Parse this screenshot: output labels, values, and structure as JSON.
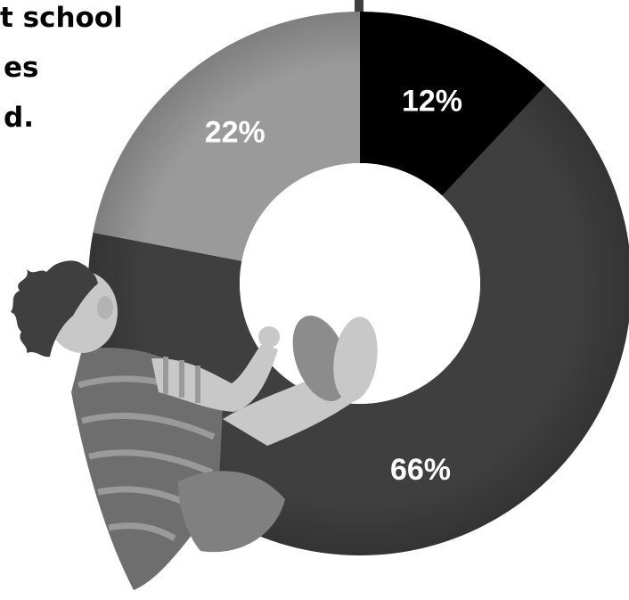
{
  "caption_lines": [
    "t school",
    "es",
    "d."
  ],
  "chart_data": {
    "type": "pie",
    "variant": "donut",
    "title": "",
    "slices": [
      {
        "label": "12%",
        "value": 12,
        "color": "#000000"
      },
      {
        "label": "66%",
        "value": 66,
        "color": "#3f3f3f"
      },
      {
        "label": "22%",
        "value": 22,
        "color": "#9a9a9a"
      }
    ],
    "start_angle_deg": 0,
    "direction": "clockwise",
    "label_color": "#ffffff",
    "legend": "none"
  },
  "illustration": {
    "name": "child-climbing-illustration",
    "skin_color": "#c8c8c8",
    "hair_color": "#3f3f3f",
    "shirt_color": "#6e6e6e",
    "shirt_stripe_color": "#9a9a9a",
    "shorts_color": "#808080",
    "shoe_color": "#8c8c8c"
  }
}
